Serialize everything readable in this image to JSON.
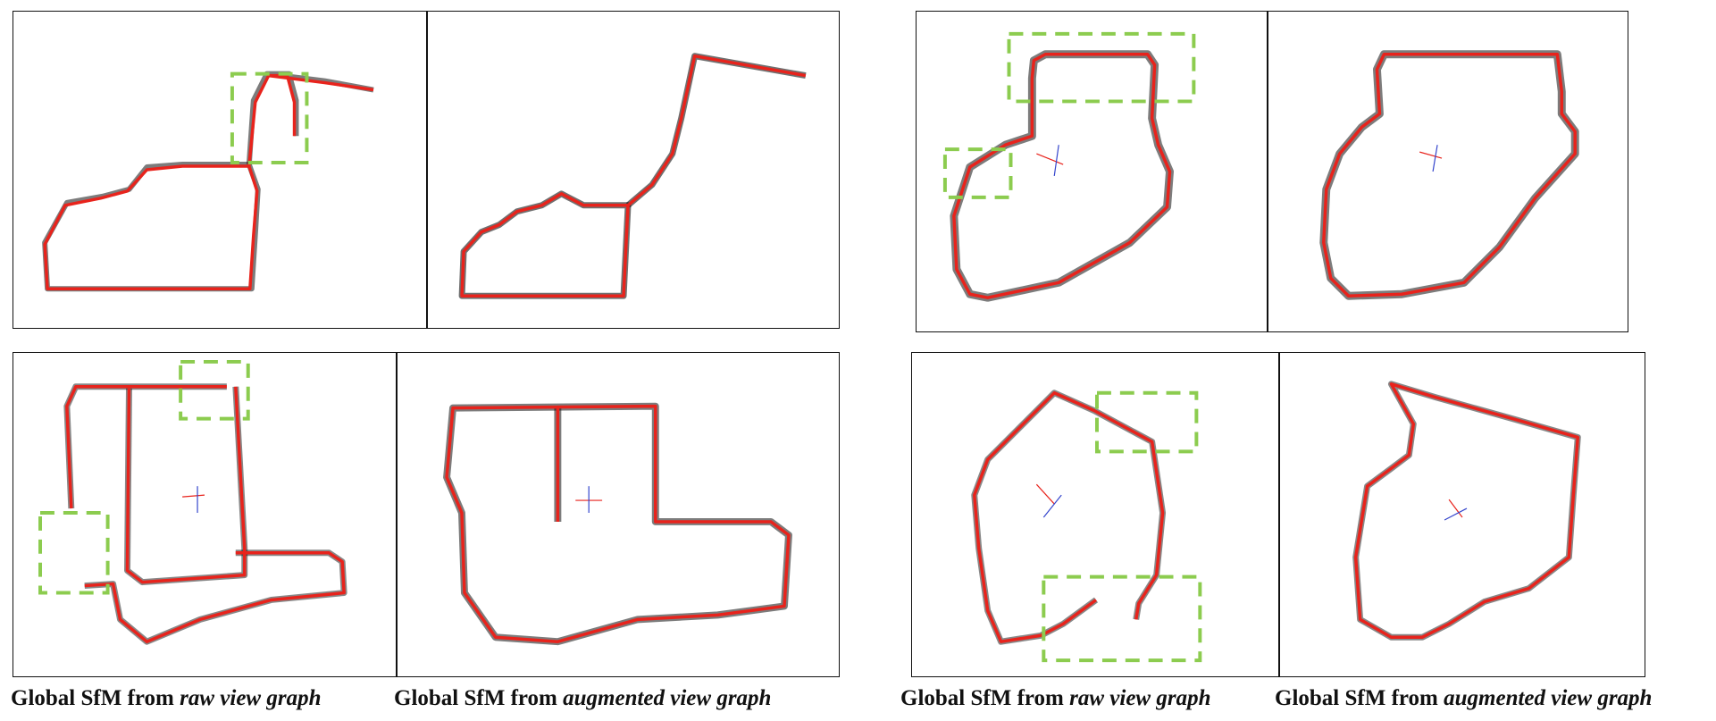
{
  "captions": [
    {
      "prefix": "Global SfM from ",
      "emph": "raw view graph"
    },
    {
      "prefix": "Global SfM from ",
      "emph": "augmented view graph"
    },
    {
      "prefix": "Global SfM from ",
      "emph": "raw view graph"
    },
    {
      "prefix": "Global SfM from ",
      "emph": "augmented view graph"
    }
  ],
  "colors": {
    "trajectory": "#e8231c",
    "points": "#111111",
    "highlight_box": "#8ccc4f",
    "frame": "#111111"
  }
}
